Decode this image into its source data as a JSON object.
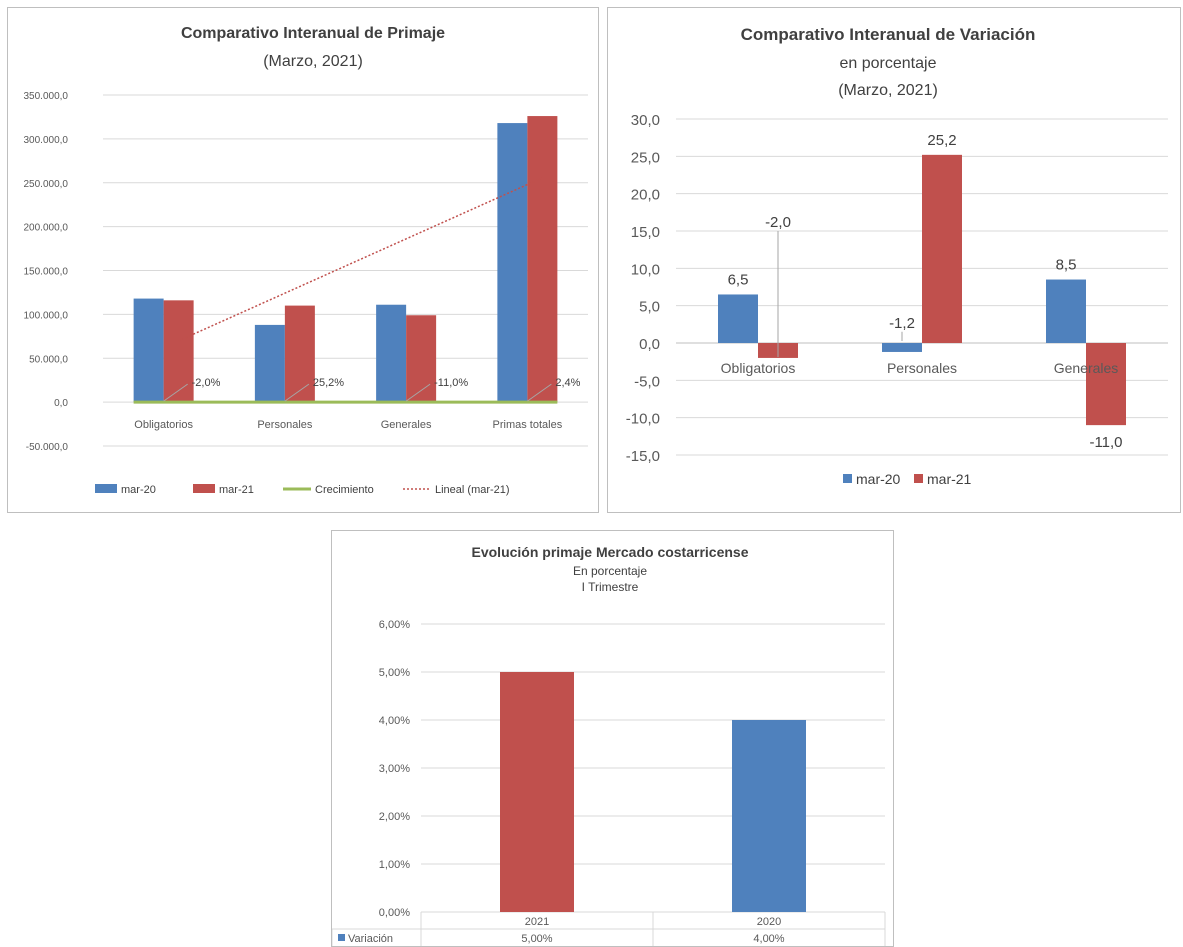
{
  "chart_data": [
    {
      "type": "bar",
      "title": "Comparativo Interanual de  Primaje",
      "subtitle": "(Marzo, 2021)",
      "categories": [
        "Obligatorios",
        "Personales",
        "Generales",
        "Primas totales"
      ],
      "series": [
        {
          "name": "mar-20",
          "color": "#4f81bd",
          "values": [
            118000,
            88000,
            111000,
            318000
          ]
        },
        {
          "name": "mar-21",
          "color": "#c0504d",
          "values": [
            116000,
            110000,
            99000,
            326000
          ]
        },
        {
          "name": "Crecimiento",
          "type": "line",
          "color": "#9bbb59",
          "values": [
            -2.0,
            25.2,
            -11.0,
            2.4
          ],
          "data_labels": [
            "-2,0%",
            "25,2%",
            "-11,0%",
            "2,4%"
          ]
        }
      ],
      "trendline": {
        "name": "Lineal (mar-21)",
        "color": "#c0504d",
        "style": "dotted"
      },
      "ylim": [
        -50000,
        350000
      ],
      "yticks": [
        350000,
        300000,
        250000,
        200000,
        150000,
        100000,
        50000,
        0,
        -50000
      ],
      "ytick_labels": [
        "350.000,0",
        "300.000,0",
        "250.000,0",
        "200.000,0",
        "150.000,0",
        "100.000,0",
        "50.000,0",
        "0,0",
        "-50.000,0"
      ],
      "legend": "bottom",
      "grid": true
    },
    {
      "type": "bar",
      "title": "Comparativo Interanual de Variación",
      "subtitle": "en porcentaje",
      "subtitle2": "(Marzo, 2021)",
      "categories": [
        "Obligatorios",
        "Personales",
        "Generales"
      ],
      "series": [
        {
          "name": "mar-20",
          "color": "#4f81bd",
          "values": [
            6.5,
            -1.2,
            8.5
          ],
          "data_labels": [
            "6,5",
            "-1,2",
            "8,5"
          ]
        },
        {
          "name": "mar-21",
          "color": "#c0504d",
          "values": [
            -2.0,
            25.2,
            -11.0
          ],
          "data_labels": [
            "-2,0",
            "25,2",
            "-11,0"
          ]
        }
      ],
      "ylim": [
        -15,
        30
      ],
      "yticks": [
        30,
        25,
        20,
        15,
        10,
        5,
        0,
        -5,
        -10,
        -15
      ],
      "ytick_labels": [
        "30,0",
        "25,0",
        "20,0",
        "15,0",
        "10,0",
        "5,0",
        "0,0",
        "-5,0",
        "-10,0",
        "-15,0"
      ],
      "legend": "bottom",
      "grid": true
    },
    {
      "type": "bar",
      "title": "Evolución primaje Mercado costarricense",
      "subtitle": "En porcentaje",
      "subtitle2": "I Trimestre",
      "categories": [
        "2021",
        "2020"
      ],
      "series": [
        {
          "name": "Variación",
          "color": "#4f81bd",
          "values": [
            5.0,
            4.0
          ],
          "data_labels": [
            "5,00%",
            "4,00%"
          ]
        }
      ],
      "bar_colors": [
        "#c0504d",
        "#4f81bd"
      ],
      "ylim": [
        0,
        6
      ],
      "yticks": [
        6,
        5,
        4,
        3,
        2,
        1,
        0
      ],
      "ytick_labels": [
        "6,00%",
        "5,00%",
        "4,00%",
        "3,00%",
        "2,00%",
        "1,00%",
        "0,00%"
      ],
      "legend": "data-table",
      "grid": true
    }
  ]
}
